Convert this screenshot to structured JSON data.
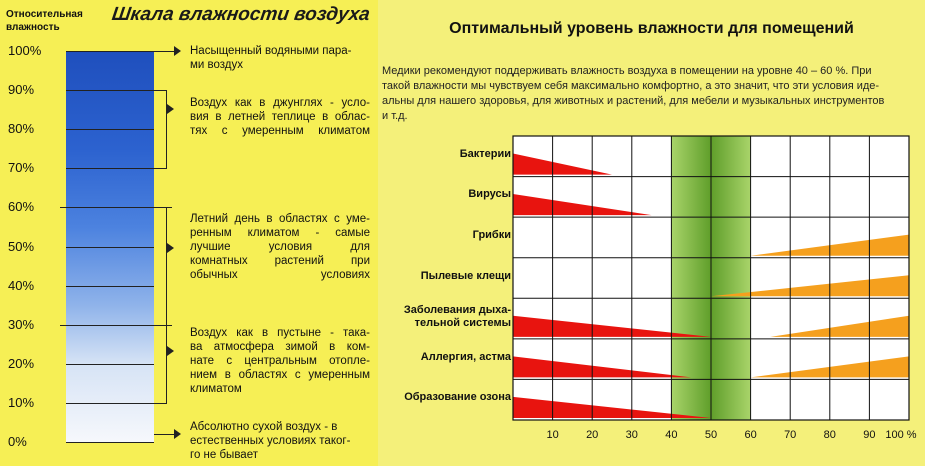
{
  "scale": {
    "axis_label_line1": "Относительная",
    "axis_label_line2": "влажность",
    "title": "Шкала влажности воздуха",
    "ticks": [
      "100%",
      "90%",
      "80%",
      "70%",
      "60%",
      "50%",
      "40%",
      "30%",
      "20%",
      "10%",
      "0%"
    ],
    "descriptions": [
      {
        "lines": [
          "Насыщенный водяными пара-",
          "ми воздух"
        ]
      },
      {
        "lines": [
          "Воздух как в джунглях - усло-",
          "вия в летней теплице в облас-",
          "тях с умеренным климатом"
        ]
      },
      {
        "lines": [
          "Летний день в областях с уме-",
          "ренным климатом - самые",
          "лучшие условия для",
          "комнатных растений при",
          "обычных условиях"
        ]
      },
      {
        "lines": [
          "Воздух как в пустыне - така-",
          "ва атмосфера зимой в ком-",
          "нате с центральным отопле-",
          "нием в областях с умеренным",
          "климатом"
        ]
      },
      {
        "lines": [
          "Абсолютно сухой воздух - в",
          "естественных условиях таког-",
          "го не бывает"
        ]
      }
    ]
  },
  "optimal": {
    "title": "Оптимальный уровень влажности для помещений",
    "text_lines": [
      "Медики рекомендуют поддерживать влажность воздуха в помещении на уровне 40 – 60 %. При",
      "такой влажности мы чувствуем себя максимально комфортно, а это значит, что эти условия иде-",
      "альны для нашего здоровья, для животных и растений, для мебели и музыкальных инструментов",
      "и т.д."
    ]
  },
  "chart_data": {
    "type": "bar",
    "x_unit": "%",
    "xlim": [
      0,
      100
    ],
    "x_ticks": [
      "10",
      "20",
      "30",
      "40",
      "50",
      "60",
      "70",
      "80",
      "90",
      "100 %"
    ],
    "optimal_band": [
      40,
      60
    ],
    "rows": [
      {
        "label": [
          "Бактерии"
        ],
        "low_wedge": [
          0,
          25
        ],
        "high_wedge": null
      },
      {
        "label": [
          "Вирусы"
        ],
        "low_wedge": [
          0,
          35
        ],
        "high_wedge": null
      },
      {
        "label": [
          "Грибки"
        ],
        "low_wedge": null,
        "high_wedge": [
          60,
          100
        ]
      },
      {
        "label": [
          "Пылевые клещи"
        ],
        "low_wedge": null,
        "high_wedge": [
          50,
          100
        ]
      },
      {
        "label": [
          "Заболевания дыха-",
          "тельной системы"
        ],
        "low_wedge": [
          0,
          50
        ],
        "high_wedge": [
          65,
          100
        ]
      },
      {
        "label": [
          "Аллергия, астма"
        ],
        "low_wedge": [
          0,
          45
        ],
        "high_wedge": [
          60,
          100
        ]
      },
      {
        "label": [
          "Образование озона"
        ],
        "low_wedge": [
          0,
          50
        ],
        "high_wedge": null
      }
    ],
    "colors": {
      "low": "#e8140f",
      "high": "#f5a01e",
      "band": "#7fb83a",
      "grid": "#111111"
    }
  }
}
